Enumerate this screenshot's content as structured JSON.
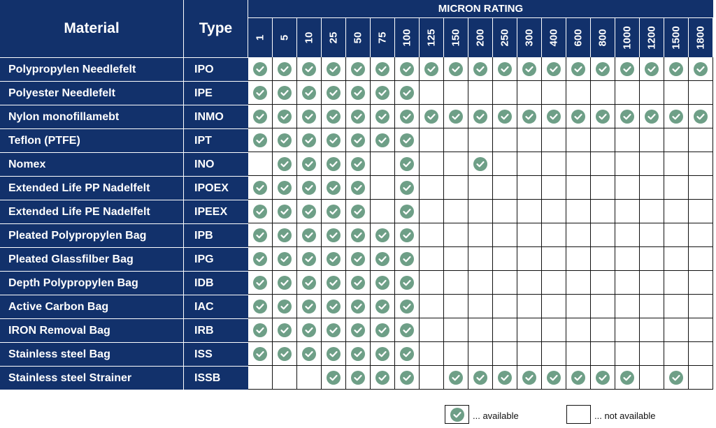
{
  "header": {
    "material_label": "Material",
    "type_label": "Type",
    "micron_label": "MICRON RATING"
  },
  "micron_columns": [
    "1",
    "5",
    "10",
    "25",
    "50",
    "75",
    "100",
    "125",
    "150",
    "200",
    "250",
    "300",
    "400",
    "600",
    "800",
    "1000",
    "1200",
    "1500",
    "1800"
  ],
  "rows": [
    {
      "material": "Polypropylen Needlefelt",
      "type": "IPO",
      "available": [
        "1",
        "5",
        "10",
        "25",
        "50",
        "75",
        "100",
        "125",
        "150",
        "200",
        "250",
        "300",
        "400",
        "600",
        "800",
        "1000",
        "1200",
        "1500",
        "1800"
      ]
    },
    {
      "material": "Polyester Needlefelt",
      "type": "IPE",
      "available": [
        "1",
        "5",
        "10",
        "25",
        "50",
        "75",
        "100"
      ]
    },
    {
      "material": "Nylon monofillamebt",
      "type": "INMO",
      "available": [
        "1",
        "5",
        "10",
        "25",
        "50",
        "75",
        "100",
        "125",
        "150",
        "200",
        "250",
        "300",
        "400",
        "600",
        "800",
        "1000",
        "1200",
        "1500",
        "1800"
      ]
    },
    {
      "material": "Teflon  (PTFE)",
      "type": "IPT",
      "available": [
        "1",
        "5",
        "10",
        "25",
        "50",
        "75",
        "100"
      ]
    },
    {
      "material": "Nomex",
      "type": "INO",
      "available": [
        "5",
        "10",
        "25",
        "50",
        "100",
        "200"
      ]
    },
    {
      "material": "Extended Life  PP Nadelfelt",
      "type": "IPOEX",
      "available": [
        "1",
        "5",
        "10",
        "25",
        "50",
        "100"
      ]
    },
    {
      "material": "Extended Life  PE Nadelfelt",
      "type": "IPEEX",
      "available": [
        "1",
        "5",
        "10",
        "25",
        "50",
        "100"
      ]
    },
    {
      "material": "Pleated Polypropylen Bag",
      "type": "IPB",
      "available": [
        "1",
        "5",
        "10",
        "25",
        "50",
        "75",
        "100"
      ]
    },
    {
      "material": "Pleated Glassfilber Bag",
      "type": "IPG",
      "available": [
        "1",
        "5",
        "10",
        "25",
        "50",
        "75",
        "100"
      ]
    },
    {
      "material": "Depth Polypropylen Bag",
      "type": "IDB",
      "available": [
        "1",
        "5",
        "10",
        "25",
        "50",
        "75",
        "100"
      ]
    },
    {
      "material": "Active Carbon Bag",
      "type": "IAC",
      "available": [
        "1",
        "5",
        "10",
        "25",
        "50",
        "75",
        "100"
      ]
    },
    {
      "material": "IRON Removal Bag",
      "type": "IRB",
      "available": [
        "1",
        "5",
        "10",
        "25",
        "50",
        "75",
        "100"
      ]
    },
    {
      "material": "Stainless steel Bag",
      "type": "ISS",
      "available": [
        "1",
        "5",
        "10",
        "25",
        "50",
        "75",
        "100"
      ]
    },
    {
      "material": "Stainless steel Strainer",
      "type": "ISSB",
      "available": [
        "25",
        "50",
        "75",
        "100",
        "150",
        "200",
        "250",
        "300",
        "400",
        "600",
        "800",
        "1000",
        "1500"
      ]
    }
  ],
  "legend": {
    "available_label": "... available",
    "not_available_label": "... not available"
  },
  "colors": {
    "header_bg": "#12316b",
    "check": "#6e9f87"
  },
  "icons": {
    "available": "check-circle-icon"
  }
}
